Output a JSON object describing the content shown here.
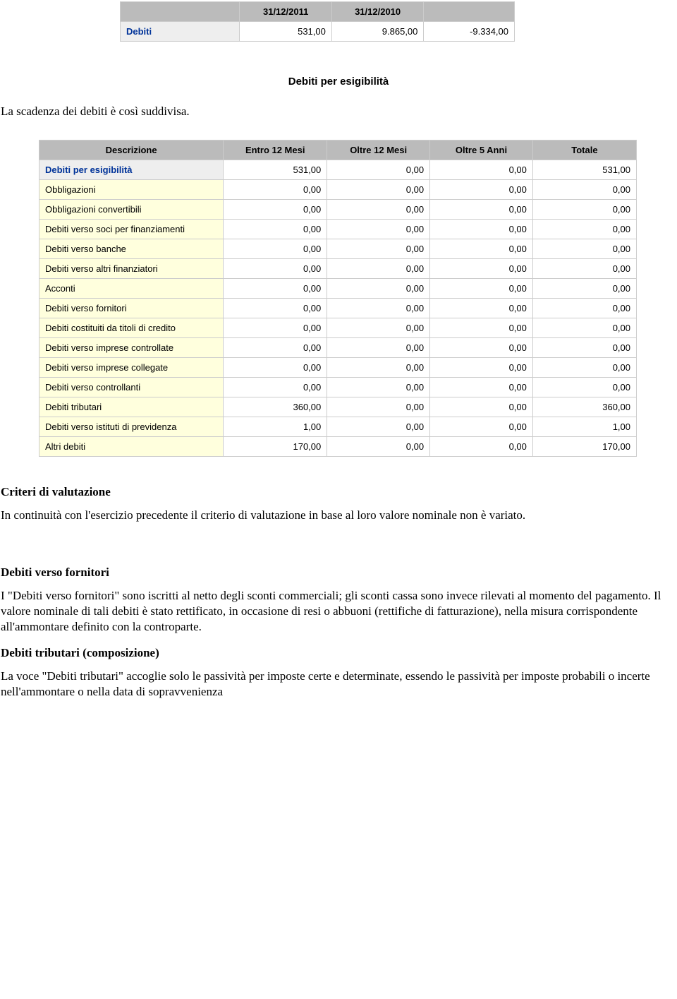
{
  "table1": {
    "headers": [
      "",
      "31/12/2011",
      "31/12/2010",
      ""
    ],
    "row": {
      "label": "Debiti",
      "v1": "531,00",
      "v2": "9.865,00",
      "v3": "-9.334,00"
    }
  },
  "subtitle": "Debiti per esigibilità",
  "intro_line": "La scadenza dei debiti è così suddivisa.",
  "table2": {
    "headers": [
      "Descrizione",
      "Entro 12 Mesi",
      "Oltre 12 Mesi",
      "Oltre 5 Anni",
      "Totale"
    ],
    "highlight_row": {
      "label": "Debiti per esigibilità",
      "v1": "531,00",
      "v2": "0,00",
      "v3": "0,00",
      "v4": "531,00"
    },
    "rows": [
      {
        "label": "Obbligazioni",
        "v1": "0,00",
        "v2": "0,00",
        "v3": "0,00",
        "v4": "0,00"
      },
      {
        "label": "Obbligazioni convertibili",
        "v1": "0,00",
        "v2": "0,00",
        "v3": "0,00",
        "v4": "0,00"
      },
      {
        "label": "Debiti verso soci per finanziamenti",
        "v1": "0,00",
        "v2": "0,00",
        "v3": "0,00",
        "v4": "0,00"
      },
      {
        "label": "Debiti verso banche",
        "v1": "0,00",
        "v2": "0,00",
        "v3": "0,00",
        "v4": "0,00"
      },
      {
        "label": "Debiti verso altri finanziatori",
        "v1": "0,00",
        "v2": "0,00",
        "v3": "0,00",
        "v4": "0,00"
      },
      {
        "label": "Acconti",
        "v1": "0,00",
        "v2": "0,00",
        "v3": "0,00",
        "v4": "0,00"
      },
      {
        "label": "Debiti verso fornitori",
        "v1": "0,00",
        "v2": "0,00",
        "v3": "0,00",
        "v4": "0,00"
      },
      {
        "label": "Debiti costituiti da titoli di credito",
        "v1": "0,00",
        "v2": "0,00",
        "v3": "0,00",
        "v4": "0,00"
      },
      {
        "label": "Debiti verso imprese controllate",
        "v1": "0,00",
        "v2": "0,00",
        "v3": "0,00",
        "v4": "0,00"
      },
      {
        "label": "Debiti verso imprese collegate",
        "v1": "0,00",
        "v2": "0,00",
        "v3": "0,00",
        "v4": "0,00"
      },
      {
        "label": "Debiti verso controllanti",
        "v1": "0,00",
        "v2": "0,00",
        "v3": "0,00",
        "v4": "0,00"
      },
      {
        "label": "Debiti tributari",
        "v1": "360,00",
        "v2": "0,00",
        "v3": "0,00",
        "v4": "360,00"
      },
      {
        "label": "Debiti verso istituti di previdenza",
        "v1": "1,00",
        "v2": "0,00",
        "v3": "0,00",
        "v4": "1,00"
      },
      {
        "label": "Altri debiti",
        "v1": "170,00",
        "v2": "0,00",
        "v3": "0,00",
        "v4": "170,00"
      }
    ]
  },
  "sections": {
    "criteri_heading": "Criteri di valutazione",
    "criteri_para": "In continuità con l'esercizio precedente il criterio di valutazione in base al loro valore nominale non è variato.",
    "fornitori_heading": "Debiti verso fornitori",
    "fornitori_para": "I \"Debiti verso fornitori\" sono iscritti al netto degli sconti commerciali; gli sconti cassa sono invece rilevati al momento del pagamento. Il valore nominale di tali debiti è stato rettificato, in occasione di resi o abbuoni (rettifiche di fatturazione), nella misura corrispondente all'ammontare definito con la controparte.",
    "tributari_heading": "Debiti tributari (composizione)",
    "tributari_para": "La voce \"Debiti tributari\" accoglie solo le passività per imposte certe e determinate, essendo le passività per imposte probabili o incerte nell'ammontare o nella data di sopravvenienza"
  },
  "colors": {
    "header_bg": "#bbbbbb",
    "row_highlight_bg": "#eeeeee",
    "row_body_bg": "#ffffdd",
    "link_color": "#003399",
    "border": "#cccccc"
  }
}
